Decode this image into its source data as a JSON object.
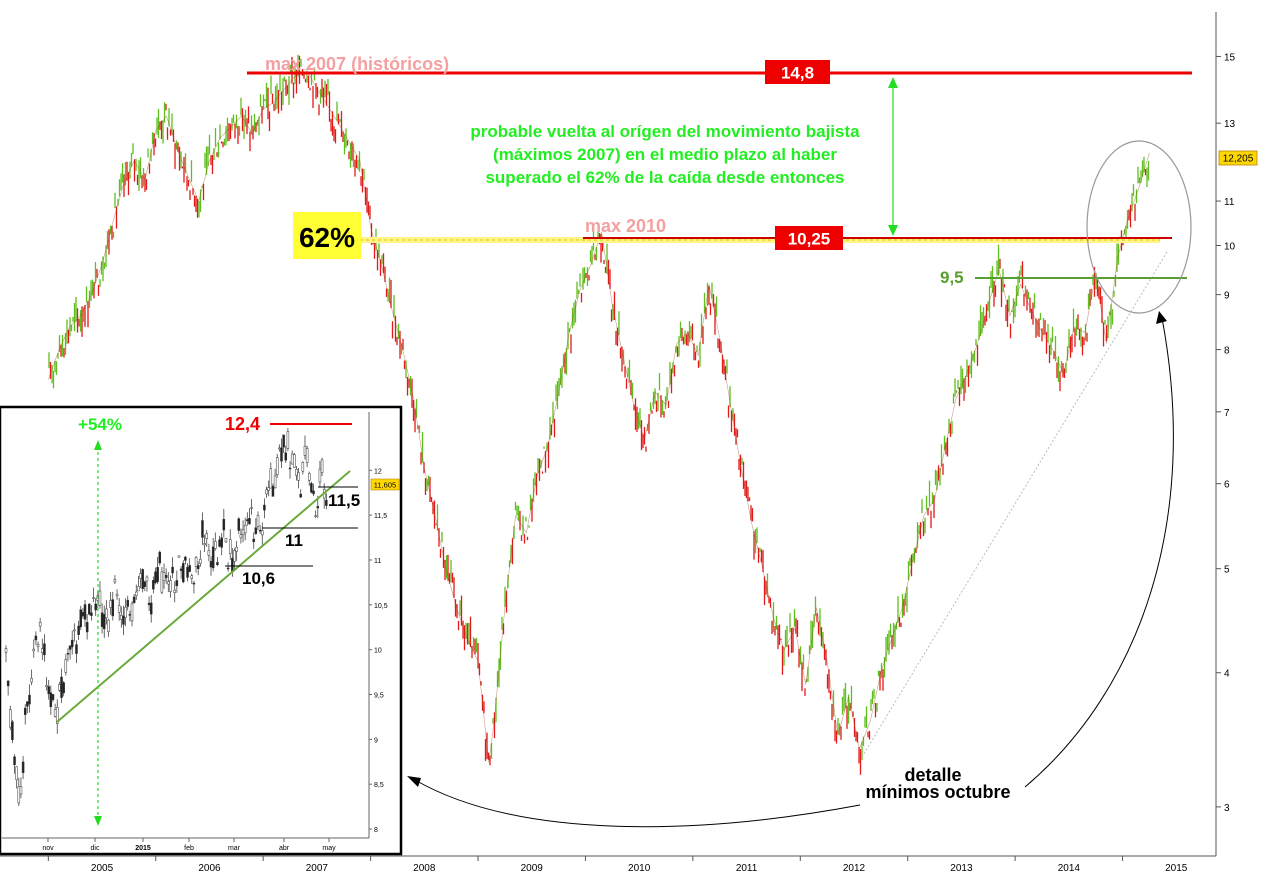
{
  "chart_data": [
    {
      "type": "line",
      "scale": "log",
      "ylim": [
        2.7,
        16.5
      ],
      "x": [
        2005.0,
        2005.1,
        2005.2,
        2005.3,
        2005.4,
        2005.5,
        2005.6,
        2005.7,
        2005.8,
        2005.9,
        2006.0,
        2006.1,
        2006.2,
        2006.3,
        2006.4,
        2006.5,
        2006.6,
        2006.7,
        2006.8,
        2006.9,
        2007.0,
        2007.1,
        2007.2,
        2007.3,
        2007.4,
        2007.5,
        2007.6,
        2007.7,
        2007.8,
        2007.9,
        2008.0,
        2008.1,
        2008.2,
        2008.3,
        2008.4,
        2008.5,
        2008.6,
        2008.7,
        2008.8,
        2008.9,
        2009.0,
        2009.1,
        2009.15,
        2009.25,
        2009.35,
        2009.45,
        2009.55,
        2009.65,
        2009.75,
        2009.85,
        2009.95,
        2010.05,
        2010.15,
        2010.25,
        2010.35,
        2010.45,
        2010.55,
        2010.65,
        2010.75,
        2010.85,
        2010.95,
        2011.05,
        2011.15,
        2011.25,
        2011.35,
        2011.45,
        2011.55,
        2011.65,
        2011.75,
        2011.85,
        2011.95,
        2012.05,
        2012.15,
        2012.25,
        2012.35,
        2012.45,
        2012.55,
        2012.65,
        2012.75,
        2012.85,
        2012.95,
        2013.05,
        2013.15,
        2013.25,
        2013.35,
        2013.45,
        2013.55,
        2013.65,
        2013.75,
        2013.85,
        2013.95,
        2014.05,
        2014.15,
        2014.25,
        2014.35,
        2014.45,
        2014.55,
        2014.65,
        2014.75,
        2014.85,
        2014.95,
        2015.05,
        2015.15,
        2015.25
      ],
      "values": [
        7.5,
        8.0,
        8.4,
        8.6,
        9.0,
        9.6,
        10.5,
        11.4,
        12.0,
        11.5,
        12.8,
        13.2,
        12.3,
        11.6,
        11.0,
        12.0,
        12.6,
        12.9,
        13.2,
        12.7,
        13.4,
        13.6,
        14.0,
        14.4,
        14.6,
        14.0,
        13.5,
        13.0,
        12.5,
        12.0,
        10.4,
        9.6,
        8.7,
        8.0,
        7.2,
        6.2,
        5.6,
        5.0,
        4.6,
        4.3,
        4.1,
        3.3,
        3.6,
        4.6,
        5.6,
        5.4,
        6.1,
        6.5,
        7.3,
        8.3,
        9.1,
        9.6,
        10.3,
        8.8,
        7.9,
        7.1,
        6.6,
        7.3,
        7.1,
        8.1,
        8.3,
        7.9,
        9.2,
        8.2,
        7.1,
        6.2,
        5.5,
        5.0,
        4.5,
        4.2,
        4.4,
        3.9,
        4.6,
        4.1,
        3.5,
        3.8,
        3.4,
        3.6,
        4.0,
        4.3,
        4.6,
        5.1,
        5.6,
        5.8,
        6.5,
        7.2,
        7.6,
        8.1,
        8.8,
        9.5,
        8.6,
        9.2,
        8.7,
        8.3,
        8.0,
        7.6,
        8.4,
        8.3,
        9.4,
        8.1,
        9.7,
        10.6,
        11.3,
        12.2
      ],
      "x_ticks": [
        "2005",
        "2006",
        "2007",
        "2008",
        "2009",
        "2010",
        "2011",
        "2012",
        "2013",
        "2014",
        "2015"
      ],
      "y_ticks": [
        "3",
        "4",
        "5",
        "6",
        "7",
        "8",
        "9",
        "10",
        "11",
        "13",
        "15"
      ],
      "last_price": "12,205",
      "levels": [
        {
          "value": 14.8,
          "label": "14,8",
          "note": "max 2007 (históricos)",
          "color": "#ee0000"
        },
        {
          "value": 10.25,
          "label": "10,25",
          "note": "max 2010",
          "color": "#ee0000"
        },
        {
          "value": 9.5,
          "label": "9,5",
          "color": "#5a9e2f"
        }
      ],
      "fib": {
        "label": "62%",
        "value": 10.2
      },
      "annotations": [
        "probable vuelta al orígen del movimiento bajista",
        "(máximos 2007) en el medio plazo al haber",
        "superado el 62% de la caída desde entonces"
      ],
      "detail_note": [
        "detalle",
        "mínimos octubre"
      ]
    },
    {
      "type": "line",
      "scale": "linear",
      "ylim": [
        7.9,
        12.65
      ],
      "x": [
        0,
        3,
        6,
        10,
        13,
        16,
        20,
        25,
        30,
        35,
        40,
        45,
        50,
        55,
        60,
        66,
        72,
        78,
        84,
        90,
        96,
        102,
        108,
        114,
        120,
        126,
        132,
        138,
        145,
        152,
        158,
        164,
        170,
        176,
        182,
        186,
        190,
        194,
        198,
        202,
        206,
        210,
        214,
        218,
        222,
        226
      ],
      "values": [
        9.8,
        9.3,
        8.7,
        8.4,
        9.1,
        9.5,
        9.9,
        10.2,
        9.6,
        9.3,
        9.5,
        10.0,
        10.1,
        10.5,
        10.4,
        10.5,
        10.4,
        10.6,
        10.4,
        10.6,
        10.8,
        10.6,
        10.9,
        10.7,
        10.9,
        11.0,
        10.8,
        11.2,
        11.0,
        11.3,
        11.0,
        11.3,
        11.5,
        11.3,
        11.6,
        11.8,
        12.0,
        12.3,
        12.2,
        12.1,
        11.8,
        12.1,
        11.9,
        11.6,
        11.9,
        11.6
      ],
      "x_ticks": [
        "nov",
        "dic",
        "2015",
        "feb",
        "mar",
        "abr",
        "may"
      ],
      "y_ticks": [
        "8",
        "8,5",
        "9",
        "9,5",
        "10",
        "10,5",
        "11",
        "11,5",
        "12"
      ],
      "last_price": "11,605",
      "levels": [
        {
          "value": 12.4,
          "label": "12,4",
          "color": "#ee0000"
        },
        {
          "value": 11.5,
          "label": "11,5",
          "color": "#000000"
        },
        {
          "value": 11.0,
          "label": "11",
          "color": "#000000"
        },
        {
          "value": 10.6,
          "label": "10,6",
          "color": "#000000"
        }
      ],
      "gain_label": "+54%"
    }
  ]
}
